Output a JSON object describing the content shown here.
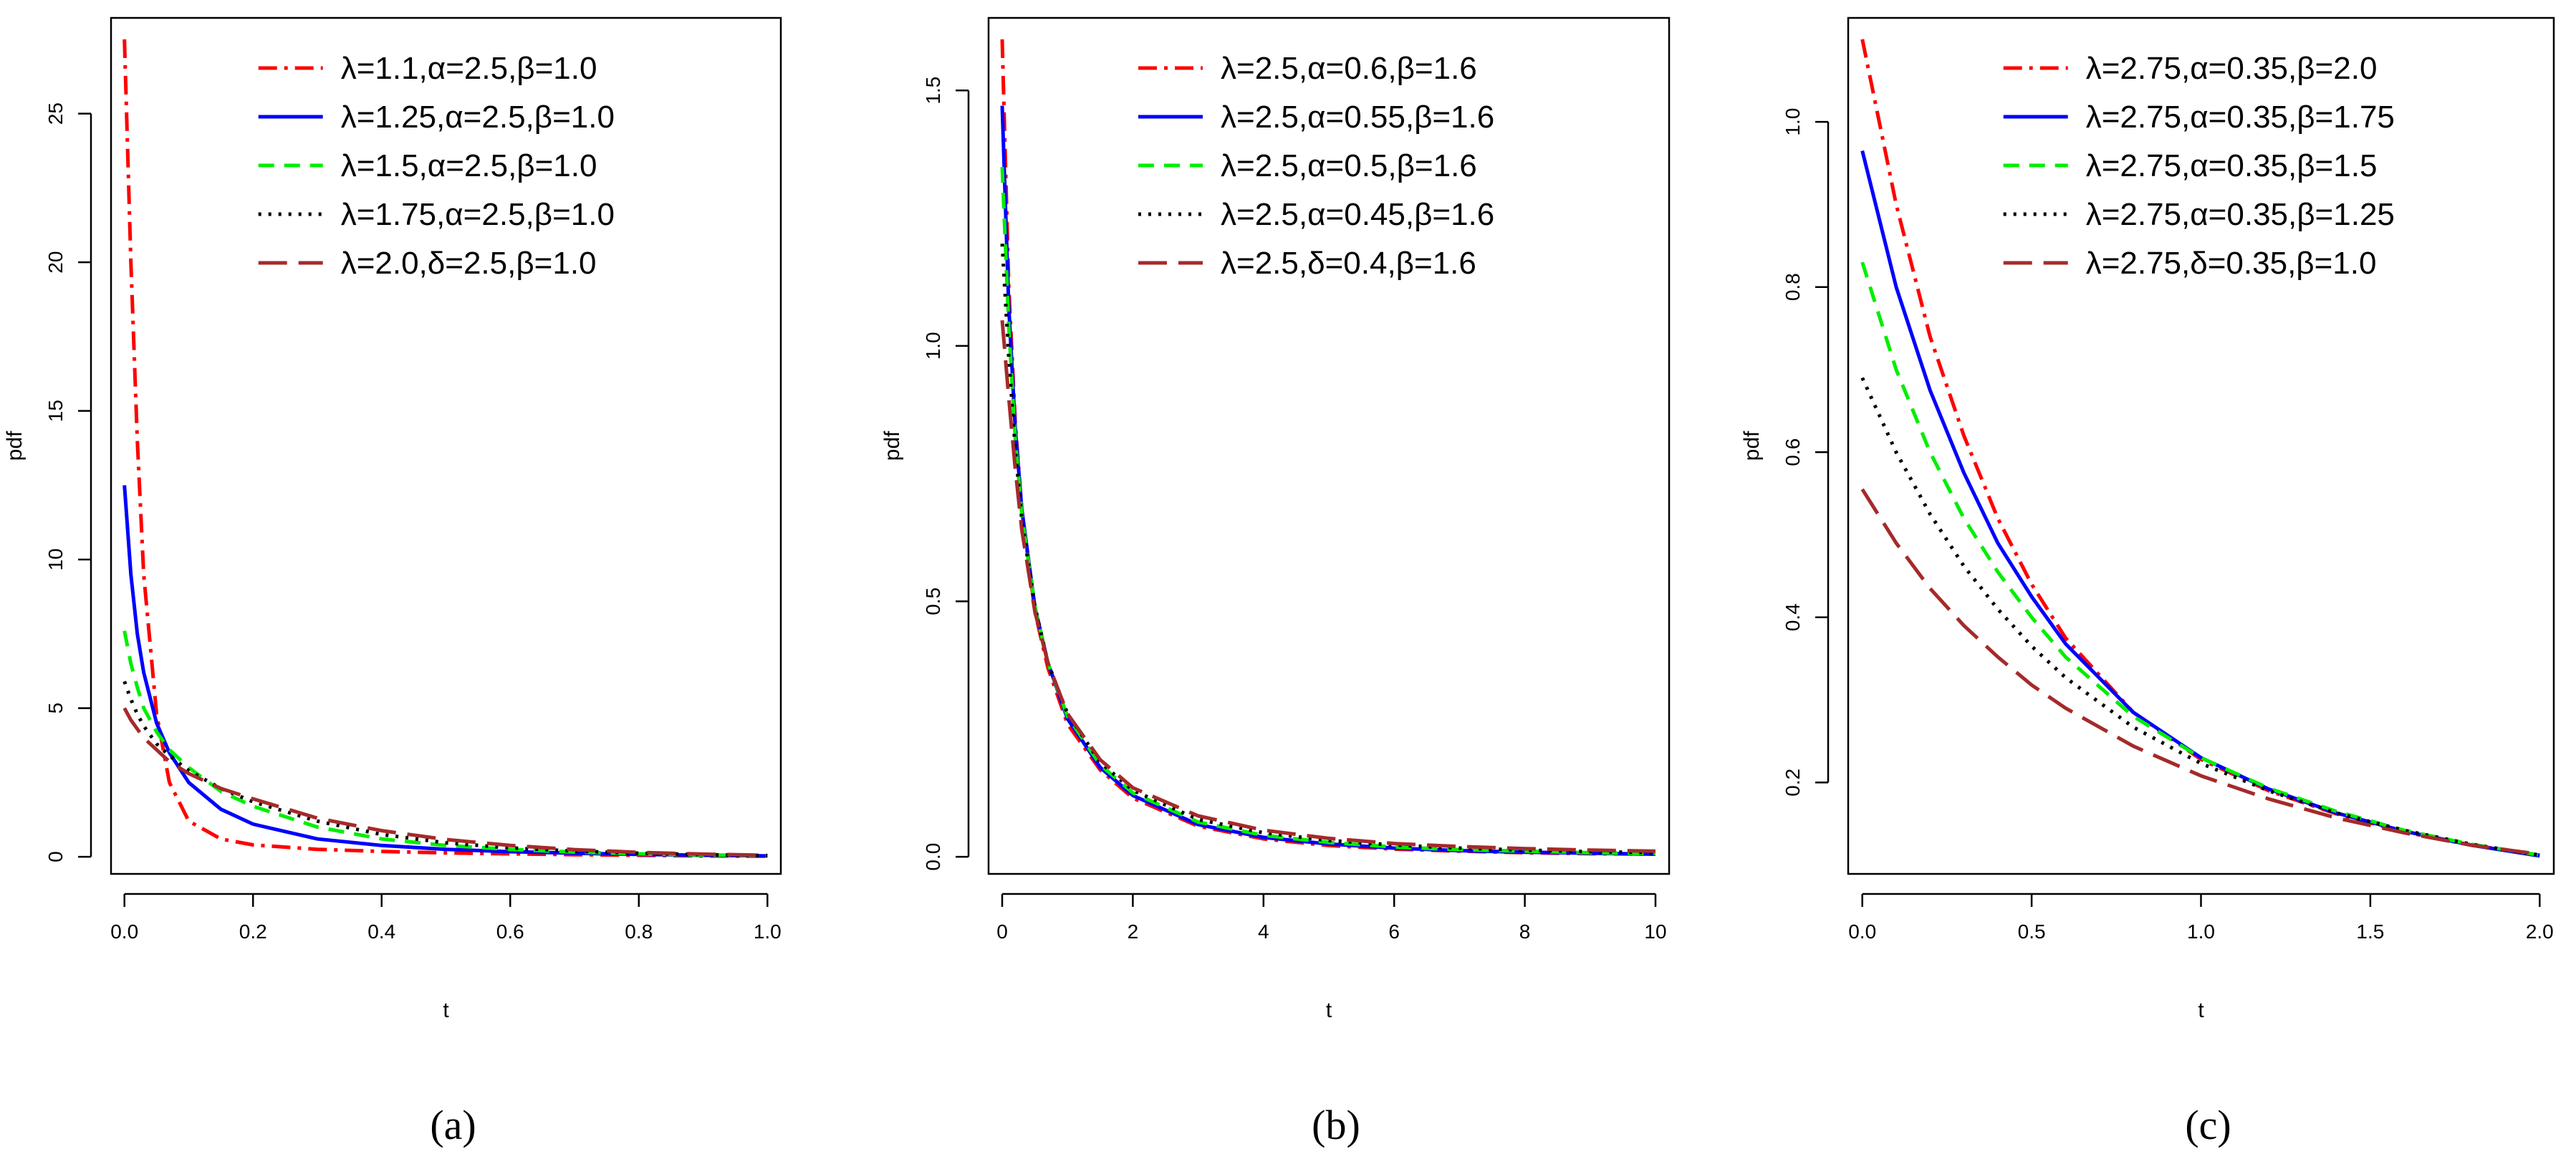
{
  "colors": {
    "red": "#ff0000",
    "blue": "#0000ff",
    "green": "#00ee00",
    "black": "#000000",
    "brown": "#a52a2a"
  },
  "chart_data": [
    {
      "type": "line",
      "caption": "(a)",
      "xlabel": "t",
      "ylabel": "pdf",
      "xlim": [
        0,
        1
      ],
      "ylim": [
        0,
        27.5
      ],
      "xticks": [
        "0.0",
        "0.2",
        "0.4",
        "0.6",
        "0.8",
        "1.0"
      ],
      "yticks": [
        "0",
        "5",
        "10",
        "15",
        "20",
        "25"
      ],
      "grid": false,
      "legend_position": "top-right",
      "series": [
        {
          "name": "λ=1.1,α=2.5,β=1.0",
          "color": "red",
          "style": "dashdot",
          "x": [
            0,
            0.01,
            0.02,
            0.03,
            0.05,
            0.07,
            0.1,
            0.15,
            0.2,
            0.3,
            0.4,
            0.5,
            0.6,
            0.7,
            0.8,
            0.9,
            1.0
          ],
          "y": [
            27.5,
            20.0,
            14.0,
            9.5,
            4.8,
            2.5,
            1.2,
            0.6,
            0.4,
            0.25,
            0.18,
            0.13,
            0.1,
            0.07,
            0.05,
            0.03,
            0.02
          ]
        },
        {
          "name": "λ=1.25,α=2.5,β=1.0",
          "color": "blue",
          "style": "solid",
          "x": [
            0,
            0.01,
            0.02,
            0.03,
            0.05,
            0.07,
            0.1,
            0.15,
            0.2,
            0.3,
            0.4,
            0.5,
            0.6,
            0.7,
            0.8,
            0.9,
            1.0
          ],
          "y": [
            12.5,
            9.5,
            7.5,
            6.2,
            4.5,
            3.5,
            2.5,
            1.6,
            1.1,
            0.6,
            0.38,
            0.25,
            0.17,
            0.12,
            0.08,
            0.05,
            0.03
          ]
        },
        {
          "name": "λ=1.5,α=2.5,β=1.0",
          "color": "green",
          "style": "dashed",
          "x": [
            0,
            0.01,
            0.02,
            0.03,
            0.05,
            0.07,
            0.1,
            0.15,
            0.2,
            0.3,
            0.4,
            0.5,
            0.6,
            0.7,
            0.8,
            0.9,
            1.0
          ],
          "y": [
            7.6,
            6.5,
            5.7,
            5.0,
            4.2,
            3.6,
            3.0,
            2.2,
            1.7,
            1.0,
            0.6,
            0.38,
            0.25,
            0.16,
            0.1,
            0.06,
            0.04
          ]
        },
        {
          "name": "λ=1.75,α=2.5,β=1.0",
          "color": "black",
          "style": "dotted",
          "x": [
            0,
            0.01,
            0.02,
            0.03,
            0.05,
            0.07,
            0.1,
            0.15,
            0.2,
            0.3,
            0.4,
            0.5,
            0.6,
            0.7,
            0.8,
            0.9,
            1.0
          ],
          "y": [
            5.9,
            5.3,
            4.8,
            4.4,
            3.8,
            3.4,
            2.9,
            2.3,
            1.85,
            1.2,
            0.75,
            0.47,
            0.3,
            0.19,
            0.12,
            0.07,
            0.04
          ]
        },
        {
          "name": "λ=2.0,δ=2.5,β=1.0",
          "color": "brown",
          "style": "longdash",
          "x": [
            0,
            0.01,
            0.02,
            0.03,
            0.05,
            0.07,
            0.1,
            0.15,
            0.2,
            0.3,
            0.4,
            0.5,
            0.6,
            0.7,
            0.8,
            0.9,
            1.0
          ],
          "y": [
            5.0,
            4.6,
            4.3,
            4.0,
            3.6,
            3.2,
            2.8,
            2.3,
            1.95,
            1.3,
            0.88,
            0.58,
            0.38,
            0.24,
            0.15,
            0.09,
            0.05
          ]
        }
      ]
    },
    {
      "type": "line",
      "caption": "(b)",
      "xlabel": "t",
      "ylabel": "pdf",
      "xlim": [
        0,
        10
      ],
      "ylim": [
        0,
        1.6
      ],
      "xticks": [
        "0",
        "2",
        "4",
        "6",
        "8",
        "10"
      ],
      "yticks": [
        "0.0",
        "0.5",
        "1.0",
        "1.5"
      ],
      "grid": false,
      "legend_position": "top-right",
      "series": [
        {
          "name": "λ=2.5,α=0.6,β=1.6",
          "color": "red",
          "style": "dashdot",
          "x": [
            0,
            0.1,
            0.2,
            0.3,
            0.5,
            0.7,
            1.0,
            1.5,
            2.0,
            3.0,
            4.0,
            5.0,
            6.0,
            7.0,
            8.0,
            9.0,
            10.0
          ],
          "y": [
            1.6,
            1.12,
            0.85,
            0.68,
            0.48,
            0.37,
            0.26,
            0.17,
            0.115,
            0.06,
            0.035,
            0.022,
            0.015,
            0.011,
            0.008,
            0.006,
            0.005
          ]
        },
        {
          "name": "λ=2.5,α=0.55,β=1.6",
          "color": "blue",
          "style": "solid",
          "x": [
            0,
            0.1,
            0.2,
            0.3,
            0.5,
            0.7,
            1.0,
            1.5,
            2.0,
            3.0,
            4.0,
            5.0,
            6.0,
            7.0,
            8.0,
            9.0,
            10.0
          ],
          "y": [
            1.47,
            1.08,
            0.84,
            0.68,
            0.49,
            0.38,
            0.27,
            0.175,
            0.12,
            0.063,
            0.038,
            0.025,
            0.017,
            0.012,
            0.009,
            0.007,
            0.005
          ]
        },
        {
          "name": "λ=2.5,α=0.5,β=1.6",
          "color": "green",
          "style": "dashed",
          "x": [
            0,
            0.1,
            0.2,
            0.3,
            0.5,
            0.7,
            1.0,
            1.5,
            2.0,
            3.0,
            4.0,
            5.0,
            6.0,
            7.0,
            8.0,
            9.0,
            10.0
          ],
          "y": [
            1.35,
            1.04,
            0.82,
            0.67,
            0.49,
            0.38,
            0.275,
            0.18,
            0.125,
            0.068,
            0.042,
            0.028,
            0.019,
            0.014,
            0.011,
            0.008,
            0.006
          ]
        },
        {
          "name": "λ=2.5,α=0.45,β=1.6",
          "color": "black",
          "style": "dotted",
          "x": [
            0,
            0.1,
            0.2,
            0.3,
            0.5,
            0.7,
            1.0,
            1.5,
            2.0,
            3.0,
            4.0,
            5.0,
            6.0,
            7.0,
            8.0,
            9.0,
            10.0
          ],
          "y": [
            1.2,
            0.98,
            0.8,
            0.66,
            0.49,
            0.38,
            0.28,
            0.185,
            0.13,
            0.073,
            0.047,
            0.032,
            0.023,
            0.017,
            0.013,
            0.01,
            0.008
          ]
        },
        {
          "name": "λ=2.5,δ=0.4,β=1.6",
          "color": "brown",
          "style": "longdash",
          "x": [
            0,
            0.1,
            0.2,
            0.3,
            0.5,
            0.7,
            1.0,
            1.5,
            2.0,
            3.0,
            4.0,
            5.0,
            6.0,
            7.0,
            8.0,
            9.0,
            10.0
          ],
          "y": [
            1.05,
            0.9,
            0.76,
            0.64,
            0.48,
            0.38,
            0.28,
            0.19,
            0.135,
            0.08,
            0.052,
            0.036,
            0.026,
            0.02,
            0.016,
            0.013,
            0.011
          ]
        }
      ]
    },
    {
      "type": "line",
      "caption": "(c)",
      "xlabel": "t",
      "ylabel": "pdf",
      "xlim": [
        0,
        2
      ],
      "ylim": [
        0.11,
        1.1
      ],
      "xticks": [
        "0.0",
        "0.5",
        "1.0",
        "1.5",
        "2.0"
      ],
      "yticks": [
        "0.2",
        "0.4",
        "0.6",
        "0.8",
        "1.0"
      ],
      "grid": false,
      "legend_position": "top-right",
      "series": [
        {
          "name": "λ=2.75,α=0.35,β=2.0",
          "color": "red",
          "style": "dashdot",
          "x": [
            0,
            0.1,
            0.2,
            0.3,
            0.4,
            0.5,
            0.6,
            0.8,
            1.0,
            1.2,
            1.4,
            1.6,
            1.8,
            2.0
          ],
          "y": [
            1.1,
            0.9,
            0.74,
            0.62,
            0.52,
            0.44,
            0.375,
            0.285,
            0.228,
            0.19,
            0.162,
            0.14,
            0.124,
            0.112
          ]
        },
        {
          "name": "λ=2.75,α=0.35,β=1.75",
          "color": "blue",
          "style": "solid",
          "x": [
            0,
            0.1,
            0.2,
            0.3,
            0.4,
            0.5,
            0.6,
            0.8,
            1.0,
            1.2,
            1.4,
            1.6,
            1.8,
            2.0
          ],
          "y": [
            0.965,
            0.8,
            0.675,
            0.575,
            0.49,
            0.425,
            0.368,
            0.285,
            0.23,
            0.192,
            0.163,
            0.141,
            0.124,
            0.111
          ]
        },
        {
          "name": "λ=2.75,α=0.35,β=1.5",
          "color": "green",
          "style": "dashed",
          "x": [
            0,
            0.1,
            0.2,
            0.3,
            0.4,
            0.5,
            0.6,
            0.8,
            1.0,
            1.2,
            1.4,
            1.6,
            1.8,
            2.0
          ],
          "y": [
            0.83,
            0.7,
            0.6,
            0.52,
            0.455,
            0.4,
            0.352,
            0.28,
            0.23,
            0.193,
            0.165,
            0.142,
            0.125,
            0.112
          ]
        },
        {
          "name": "λ=2.75,α=0.35,β=1.25",
          "color": "black",
          "style": "dotted",
          "x": [
            0,
            0.1,
            0.2,
            0.3,
            0.4,
            0.5,
            0.6,
            0.8,
            1.0,
            1.2,
            1.4,
            1.6,
            1.8,
            2.0
          ],
          "y": [
            0.69,
            0.6,
            0.525,
            0.462,
            0.41,
            0.365,
            0.327,
            0.267,
            0.223,
            0.19,
            0.163,
            0.142,
            0.125,
            0.112
          ]
        },
        {
          "name": "λ=2.75,δ=0.35,β=1.0",
          "color": "brown",
          "style": "longdash",
          "x": [
            0,
            0.1,
            0.2,
            0.3,
            0.4,
            0.5,
            0.6,
            0.8,
            1.0,
            1.2,
            1.4,
            1.6,
            1.8,
            2.0
          ],
          "y": [
            0.555,
            0.49,
            0.435,
            0.39,
            0.352,
            0.318,
            0.29,
            0.244,
            0.208,
            0.18,
            0.157,
            0.139,
            0.124,
            0.113
          ]
        }
      ]
    }
  ]
}
